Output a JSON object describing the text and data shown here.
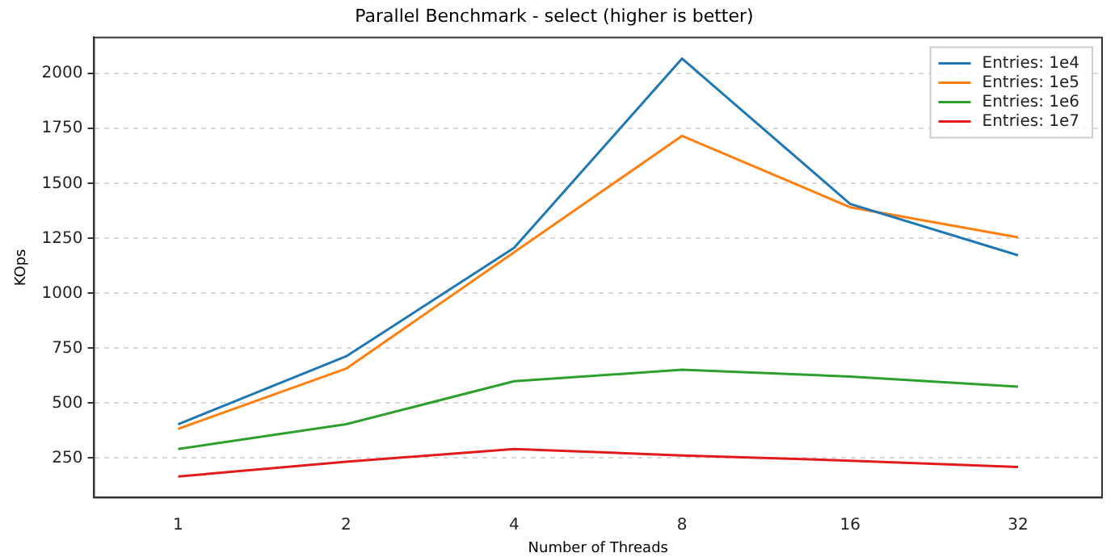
{
  "chart_data": {
    "type": "line",
    "title": "Parallel Benchmark - select (higher is better)",
    "xlabel": "Number of Threads",
    "ylabel": "KOps",
    "categories": [
      "1",
      "2",
      "4",
      "8",
      "16",
      "32"
    ],
    "series": [
      {
        "name": "Entries: 1e4",
        "color": "#1f77b4",
        "values": [
          404,
          713,
          1207,
          2069,
          1407,
          1173
        ]
      },
      {
        "name": "Entries: 1e5",
        "color": "#ff7f0e",
        "values": [
          383,
          657,
          1187,
          1717,
          1392,
          1255
        ]
      },
      {
        "name": "Entries: 1e6",
        "color": "#2ca02c",
        "values": [
          291,
          404,
          600,
          652,
          621,
          575
        ]
      },
      {
        "name": "Entries: 1e7",
        "color": "#e31a1c",
        "values": [
          166,
          233,
          291,
          262,
          238,
          209
        ]
      }
    ],
    "ylim": [
      70,
      2165
    ],
    "yticks": [
      250,
      500,
      750,
      1000,
      1250,
      1500,
      1750,
      2000
    ],
    "grid": "y",
    "legend": "top right",
    "marker": "none",
    "line_style": "solid"
  }
}
